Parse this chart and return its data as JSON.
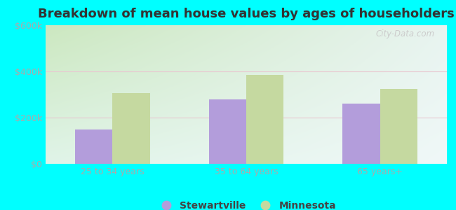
{
  "title": "Breakdown of mean house values by ages of householders",
  "categories": [
    "25 to 34 years",
    "35 to 64 years",
    "65 years+"
  ],
  "stewartville_values": [
    150000,
    280000,
    260000
  ],
  "minnesota_values": [
    305000,
    385000,
    325000
  ],
  "ylim": [
    0,
    600000
  ],
  "yticks": [
    0,
    200000,
    400000,
    600000
  ],
  "ytick_labels": [
    "$0",
    "$200k",
    "$400k",
    "$600k"
  ],
  "bar_color_stewartville": "#b39ddb",
  "bar_color_minnesota": "#c5d9a0",
  "legend_stewartville": "Stewartville",
  "legend_minnesota": "Minnesota",
  "background_outer": "#00FFFF",
  "title_fontsize": 13,
  "tick_color": "#aaaaaa",
  "watermark": "City-Data.com",
  "bar_width": 0.28,
  "grid_color": "#e8c8d0",
  "bg_top_left": "#cce8c0",
  "bg_top_right": "#e8f4f0",
  "bg_bottom": "#e8f8f0"
}
